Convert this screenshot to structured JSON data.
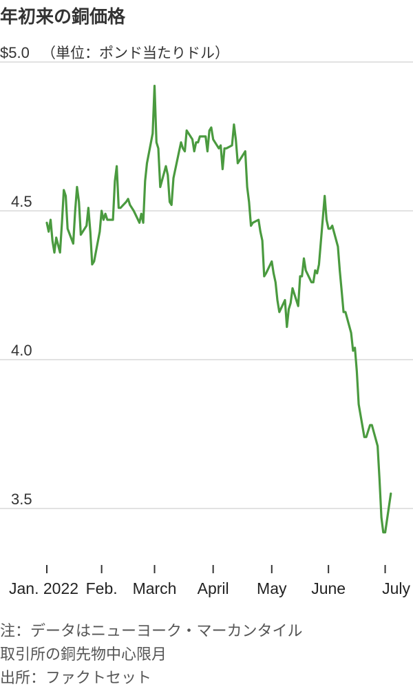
{
  "header": {
    "title": "年初来の銅価格"
  },
  "chart_data": {
    "type": "line",
    "title": "年初来の銅価格",
    "unit_prefix": "$",
    "unit_label": "（単位：ポンド当たりドル）",
    "xlabel": "",
    "ylabel": "",
    "ylim": [
      3.3,
      5.0
    ],
    "y_ticks": [
      {
        "value": 5.0,
        "label": "$5.0"
      },
      {
        "value": 4.5,
        "label": "4.5"
      },
      {
        "value": 4.0,
        "label": "4.0"
      },
      {
        "value": 3.5,
        "label": "3.5"
      }
    ],
    "x_range": [
      "2022-01-03",
      "2022-07-15"
    ],
    "x_ticks": [
      {
        "date": "2022-01-03",
        "label": "Jan. 2022"
      },
      {
        "date": "2022-02-01",
        "label": "Feb."
      },
      {
        "date": "2022-03-01",
        "label": "March"
      },
      {
        "date": "2022-04-01",
        "label": "April"
      },
      {
        "date": "2022-05-02",
        "label": "May"
      },
      {
        "date": "2022-06-01",
        "label": "June"
      },
      {
        "date": "2022-07-01",
        "label": "July"
      }
    ],
    "grid": true,
    "series": [
      {
        "color": "#4a9a3f",
        "points": [
          [
            "2022-01-03",
            4.46
          ],
          [
            "2022-01-04",
            4.43
          ],
          [
            "2022-01-05",
            4.47
          ],
          [
            "2022-01-06",
            4.4
          ],
          [
            "2022-01-07",
            4.36
          ],
          [
            "2022-01-08",
            4.41
          ],
          [
            "2022-01-10",
            4.36
          ],
          [
            "2022-01-11",
            4.46
          ],
          [
            "2022-01-12",
            4.57
          ],
          [
            "2022-01-13",
            4.55
          ],
          [
            "2022-01-14",
            4.44
          ],
          [
            "2022-01-17",
            4.39
          ],
          [
            "2022-01-18",
            4.5
          ],
          [
            "2022-01-19",
            4.58
          ],
          [
            "2022-01-20",
            4.53
          ],
          [
            "2022-01-21",
            4.42
          ],
          [
            "2022-01-24",
            4.45
          ],
          [
            "2022-01-25",
            4.51
          ],
          [
            "2022-01-26",
            4.43
          ],
          [
            "2022-01-27",
            4.32
          ],
          [
            "2022-01-28",
            4.33
          ],
          [
            "2022-01-31",
            4.43
          ],
          [
            "2022-02-01",
            4.5
          ],
          [
            "2022-02-02",
            4.47
          ],
          [
            "2022-02-03",
            4.49
          ],
          [
            "2022-02-04",
            4.47
          ],
          [
            "2022-02-07",
            4.47
          ],
          [
            "2022-02-08",
            4.6
          ],
          [
            "2022-02-09",
            4.65
          ],
          [
            "2022-02-10",
            4.51
          ],
          [
            "2022-02-11",
            4.51
          ],
          [
            "2022-02-14",
            4.53
          ],
          [
            "2022-02-15",
            4.54
          ],
          [
            "2022-02-16",
            4.52
          ],
          [
            "2022-02-17",
            4.51
          ],
          [
            "2022-02-18",
            4.5
          ],
          [
            "2022-02-21",
            4.46
          ],
          [
            "2022-02-22",
            4.49
          ],
          [
            "2022-02-23",
            4.46
          ],
          [
            "2022-02-24",
            4.6
          ],
          [
            "2022-02-25",
            4.66
          ],
          [
            "2022-02-28",
            4.76
          ],
          [
            "2022-03-01",
            4.92
          ],
          [
            "2022-03-02",
            4.73
          ],
          [
            "2022-03-03",
            4.71
          ],
          [
            "2022-03-04",
            4.58
          ],
          [
            "2022-03-07",
            4.65
          ],
          [
            "2022-03-08",
            4.62
          ],
          [
            "2022-03-09",
            4.53
          ],
          [
            "2022-03-10",
            4.52
          ],
          [
            "2022-03-11",
            4.61
          ],
          [
            "2022-03-14",
            4.7
          ],
          [
            "2022-03-15",
            4.73
          ],
          [
            "2022-03-16",
            4.71
          ],
          [
            "2022-03-17",
            4.7
          ],
          [
            "2022-03-18",
            4.77
          ],
          [
            "2022-03-21",
            4.74
          ],
          [
            "2022-03-22",
            4.7
          ],
          [
            "2022-03-23",
            4.73
          ],
          [
            "2022-03-24",
            4.73
          ],
          [
            "2022-03-25",
            4.75
          ],
          [
            "2022-03-28",
            4.75
          ],
          [
            "2022-03-29",
            4.7
          ],
          [
            "2022-03-30",
            4.77
          ],
          [
            "2022-03-31",
            4.78
          ],
          [
            "2022-04-01",
            4.74
          ],
          [
            "2022-04-04",
            4.71
          ],
          [
            "2022-04-05",
            4.72
          ],
          [
            "2022-04-06",
            4.64
          ],
          [
            "2022-04-07",
            4.71
          ],
          [
            "2022-04-08",
            4.71
          ],
          [
            "2022-04-11",
            4.72
          ],
          [
            "2022-04-12",
            4.79
          ],
          [
            "2022-04-13",
            4.74
          ],
          [
            "2022-04-14",
            4.66
          ],
          [
            "2022-04-18",
            4.7
          ],
          [
            "2022-04-19",
            4.58
          ],
          [
            "2022-04-20",
            4.53
          ],
          [
            "2022-04-21",
            4.45
          ],
          [
            "2022-04-22",
            4.46
          ],
          [
            "2022-04-25",
            4.47
          ],
          [
            "2022-04-26",
            4.43
          ],
          [
            "2022-04-27",
            4.4
          ],
          [
            "2022-04-28",
            4.28
          ],
          [
            "2022-04-29",
            4.29
          ],
          [
            "2022-05-02",
            4.33
          ],
          [
            "2022-05-03",
            4.29
          ],
          [
            "2022-05-04",
            4.26
          ],
          [
            "2022-05-05",
            4.2
          ],
          [
            "2022-05-06",
            4.16
          ],
          [
            "2022-05-09",
            4.2
          ],
          [
            "2022-05-10",
            4.11
          ],
          [
            "2022-05-11",
            4.17
          ],
          [
            "2022-05-12",
            4.19
          ],
          [
            "2022-05-13",
            4.24
          ],
          [
            "2022-05-16",
            4.18
          ],
          [
            "2022-05-17",
            4.28
          ],
          [
            "2022-05-18",
            4.28
          ],
          [
            "2022-05-19",
            4.34
          ],
          [
            "2022-05-20",
            4.3
          ],
          [
            "2022-05-23",
            4.26
          ],
          [
            "2022-05-24",
            4.26
          ],
          [
            "2022-05-25",
            4.3
          ],
          [
            "2022-05-26",
            4.29
          ],
          [
            "2022-05-27",
            4.32
          ],
          [
            "2022-05-30",
            4.55
          ],
          [
            "2022-05-31",
            4.47
          ],
          [
            "2022-06-01",
            4.44
          ],
          [
            "2022-06-02",
            4.44
          ],
          [
            "2022-06-03",
            4.45
          ],
          [
            "2022-06-06",
            4.38
          ],
          [
            "2022-06-07",
            4.3
          ],
          [
            "2022-06-08",
            4.23
          ],
          [
            "2022-06-09",
            4.16
          ],
          [
            "2022-06-10",
            4.16
          ],
          [
            "2022-06-13",
            4.09
          ],
          [
            "2022-06-14",
            4.03
          ],
          [
            "2022-06-15",
            4.04
          ],
          [
            "2022-06-16",
            3.96
          ],
          [
            "2022-06-17",
            3.85
          ],
          [
            "2022-06-20",
            3.74
          ],
          [
            "2022-06-21",
            3.74
          ],
          [
            "2022-06-22",
            3.76
          ],
          [
            "2022-06-23",
            3.78
          ],
          [
            "2022-06-24",
            3.78
          ],
          [
            "2022-06-27",
            3.71
          ],
          [
            "2022-06-28",
            3.6
          ],
          [
            "2022-06-29",
            3.47
          ],
          [
            "2022-06-30",
            3.42
          ],
          [
            "2022-07-01",
            3.42
          ],
          [
            "2022-07-04",
            3.55
          ]
        ]
      }
    ]
  },
  "notes": {
    "line1": "注：データはニューヨーク・マーカンタイル",
    "line2": "取引所の銅先物中心限月",
    "line3": "出所：ファクトセット"
  }
}
